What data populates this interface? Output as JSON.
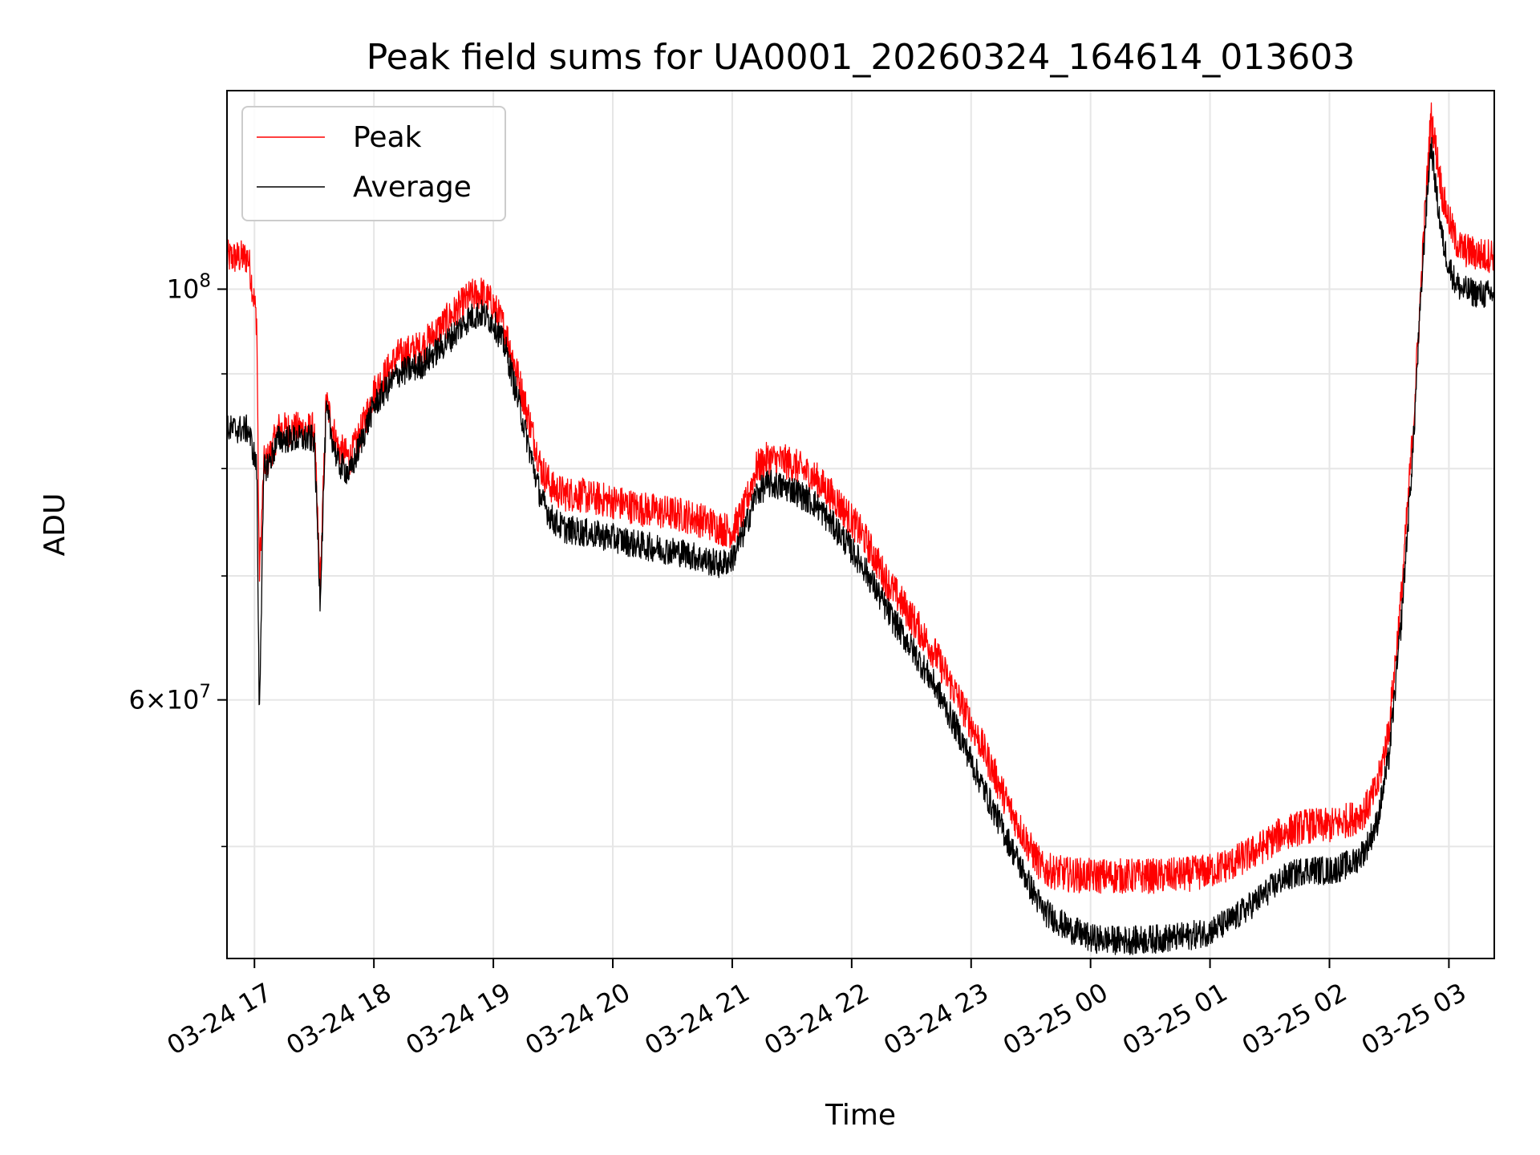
{
  "chart_data": {
    "type": "line",
    "title": "Peak field sums for UA0001_20260324_164614_013603",
    "xlabel": "Time",
    "ylabel": "ADU",
    "yscale": "log",
    "ylim": [
      43500000,
      128000000
    ],
    "xlim": [
      16.77,
      27.38
    ],
    "x_units": "hours since 03-24 00:00",
    "x_ticks": [
      {
        "value": 17,
        "label": "03-24 17"
      },
      {
        "value": 18,
        "label": "03-24 18"
      },
      {
        "value": 19,
        "label": "03-24 19"
      },
      {
        "value": 20,
        "label": "03-24 20"
      },
      {
        "value": 21,
        "label": "03-24 21"
      },
      {
        "value": 22,
        "label": "03-24 22"
      },
      {
        "value": 23,
        "label": "03-24 23"
      },
      {
        "value": 24,
        "label": "03-25 00"
      },
      {
        "value": 25,
        "label": "03-25 01"
      },
      {
        "value": 26,
        "label": "03-25 02"
      },
      {
        "value": 27,
        "label": "03-25 03"
      }
    ],
    "y_major_ticks": [
      {
        "value": 60000000,
        "base": "6×10",
        "exp": "7"
      },
      {
        "value": 100000000,
        "base": "10",
        "exp": "8"
      }
    ],
    "y_minor_ticks": [
      50000000,
      70000000,
      80000000,
      90000000
    ],
    "grid": true,
    "legend": "top-left",
    "series": [
      {
        "name": "Peak",
        "color": "#ff0000",
        "noise": 0.022,
        "x": [
          16.77,
          16.95,
          17.02,
          17.04,
          17.08,
          17.12,
          17.2,
          17.3,
          17.4,
          17.5,
          17.55,
          17.6,
          17.7,
          17.8,
          17.9,
          18.0,
          18.2,
          18.4,
          18.6,
          18.8,
          18.9,
          19.0,
          19.1,
          19.2,
          19.3,
          19.4,
          19.5,
          19.6,
          19.7,
          19.8,
          20.0,
          20.2,
          20.4,
          20.6,
          20.8,
          20.9,
          21.0,
          21.1,
          21.2,
          21.3,
          21.5,
          21.7,
          21.9,
          22.1,
          22.3,
          22.5,
          22.7,
          22.9,
          23.1,
          23.3,
          23.5,
          23.6,
          23.8,
          24.0,
          24.2,
          24.4,
          24.6,
          24.8,
          25.0,
          25.2,
          25.4,
          25.6,
          25.8,
          26.0,
          26.2,
          26.3,
          26.4,
          26.5,
          26.6,
          26.7,
          26.75,
          26.8,
          26.85,
          26.9,
          26.95,
          27.0,
          27.05,
          27.1,
          27.2,
          27.3,
          27.38
        ],
        "values": [
          104000000,
          104000000,
          96000000,
          70000000,
          80500000,
          81000000,
          84000000,
          84000000,
          84000000,
          84000000,
          69000000,
          87000000,
          82000000,
          81000000,
          84000000,
          88000000,
          92000000,
          93000000,
          96000000,
          99000000,
          99500000,
          98000000,
          95000000,
          90000000,
          85000000,
          80000000,
          78000000,
          77500000,
          77500000,
          77200000,
          76800000,
          76200000,
          75800000,
          75500000,
          74800000,
          74300000,
          74000000,
          76000000,
          80000000,
          81000000,
          80500000,
          79000000,
          76500000,
          73500000,
          69500000,
          66500000,
          63500000,
          60000000,
          56500000,
          52800000,
          49800000,
          48600000,
          48300000,
          48200000,
          48200000,
          48200000,
          48200000,
          48300000,
          48500000,
          49000000,
          49800000,
          50800000,
          51300000,
          51300000,
          51800000,
          52300000,
          53800000,
          58000000,
          68000000,
          84000000,
          96000000,
          110000000,
          124000000,
          118000000,
          112000000,
          109000000,
          106500000,
          105200000,
          104600000,
          104200000,
          104500000
        ]
      },
      {
        "name": "Average",
        "color": "#000000",
        "noise": 0.018,
        "x": [
          16.77,
          16.95,
          17.02,
          17.04,
          17.08,
          17.12,
          17.2,
          17.3,
          17.4,
          17.5,
          17.55,
          17.6,
          17.7,
          17.8,
          17.9,
          18.0,
          18.2,
          18.4,
          18.6,
          18.8,
          18.9,
          19.0,
          19.1,
          19.2,
          19.3,
          19.4,
          19.5,
          19.6,
          19.7,
          19.8,
          20.0,
          20.2,
          20.4,
          20.6,
          20.8,
          20.9,
          21.0,
          21.1,
          21.2,
          21.3,
          21.5,
          21.7,
          21.9,
          22.1,
          22.3,
          22.5,
          22.7,
          22.9,
          23.1,
          23.3,
          23.5,
          23.6,
          23.8,
          24.0,
          24.2,
          24.4,
          24.6,
          24.8,
          25.0,
          25.2,
          25.4,
          25.6,
          25.8,
          26.0,
          26.2,
          26.3,
          26.4,
          26.5,
          26.6,
          26.7,
          26.75,
          26.8,
          26.85,
          26.9,
          26.95,
          27.0,
          27.05,
          27.1,
          27.2,
          27.3,
          27.38
        ],
        "values": [
          84000000,
          84000000,
          80000000,
          59000000,
          80000000,
          80500000,
          83000000,
          83000000,
          83000000,
          83000000,
          68000000,
          86000000,
          80500000,
          79500000,
          83000000,
          86500000,
          90000000,
          91000000,
          93500000,
          96500000,
          97000000,
          96000000,
          93000000,
          87500000,
          82000000,
          77000000,
          75000000,
          74200000,
          74000000,
          73800000,
          73400000,
          72800000,
          72400000,
          72000000,
          71300000,
          71000000,
          71500000,
          74000000,
          77500000,
          78500000,
          78000000,
          76500000,
          73800000,
          70800000,
          67000000,
          64000000,
          61000000,
          57500000,
          53800000,
          50500000,
          47500000,
          46200000,
          45200000,
          44600000,
          44500000,
          44500000,
          44600000,
          44700000,
          45000000,
          45700000,
          46800000,
          48000000,
          48600000,
          48500000,
          49000000,
          49800000,
          51500000,
          56000000,
          66000000,
          82000000,
          95000000,
          108000000,
          120000000,
          112000000,
          106000000,
          103000000,
          101000000,
          100000000,
          99600000,
          99300000,
          99500000
        ]
      }
    ],
    "legend_entries": [
      "Peak",
      "Average"
    ]
  }
}
